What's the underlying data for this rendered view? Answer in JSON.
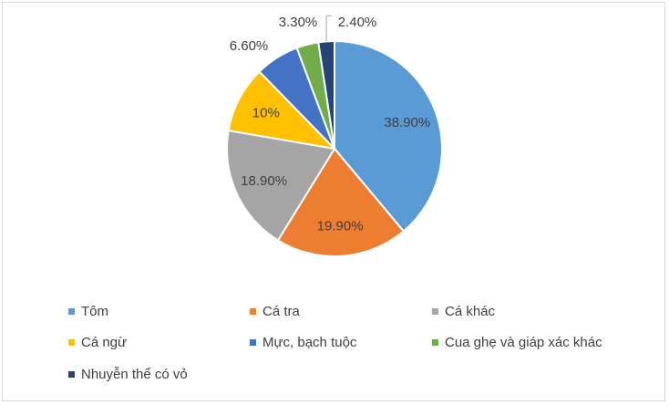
{
  "chart_data": {
    "type": "pie",
    "title": "",
    "slices": [
      {
        "name": "Tôm",
        "value": 38.9,
        "label": "38.90%",
        "color": "#5b9bd5"
      },
      {
        "name": "Cá tra",
        "value": 19.9,
        "label": "19.90%",
        "color": "#ed7d31"
      },
      {
        "name": "Cá khác",
        "value": 18.9,
        "label": "18.90%",
        "color": "#a5a5a5"
      },
      {
        "name": "Cá ngừ",
        "value": 10,
        "label": "10%",
        "color": "#ffc000"
      },
      {
        "name": "Mực, bạch tuộc",
        "value": 6.6,
        "label": "6.60%",
        "color": "#4472c4"
      },
      {
        "name": "Cua ghẹ và giáp xác khác",
        "value": 3.3,
        "label": "3.30%",
        "color": "#70ad47"
      },
      {
        "name": "Nhuyễn thể có vỏ",
        "value": 2.4,
        "label": "2.40%",
        "color": "#264478"
      }
    ],
    "legend_position": "bottom",
    "start_angle_deg": 0,
    "direction": "clockwise"
  }
}
